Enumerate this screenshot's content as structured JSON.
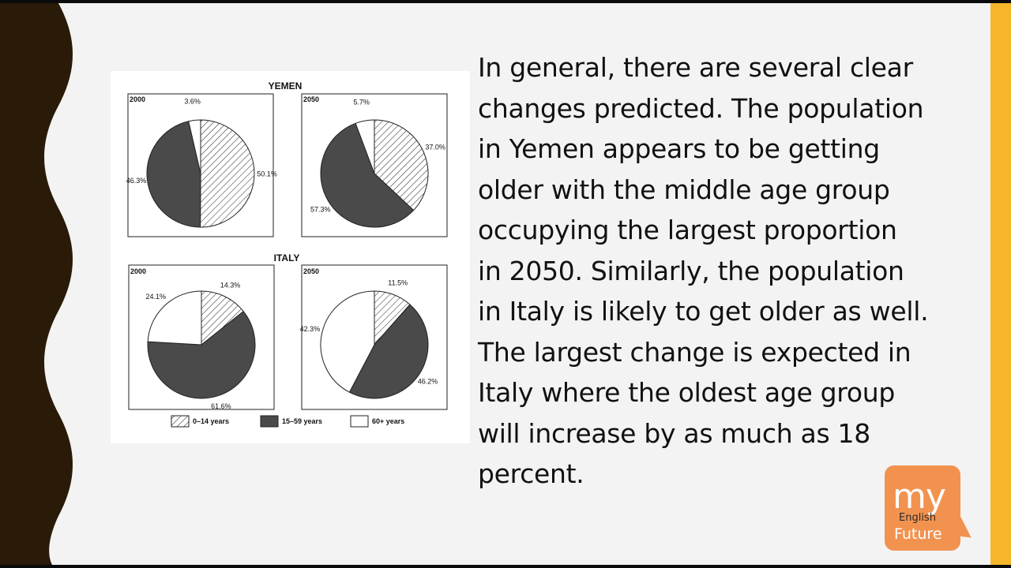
{
  "slide": {
    "body_text": "In general, there are several clear\nchanges predicted.  The population\nin Yemen appears to be getting\nolder with the middle age group\noccupying the largest proportion\nin 2050.  Similarly, the population\nin Italy is likely to get older as well.\nThe largest change is expected in\nItaly where the oldest age group\nwill increase by as much as 18\npercent."
  },
  "logo": {
    "my": "my",
    "english": "English",
    "future": "Future"
  },
  "colors": {
    "accent_bar": "#f6b52a",
    "frame": "#2a1a08",
    "logo": "#f2924f",
    "slice_dark": "#4a4a4a",
    "slice_light": "#ffffff"
  },
  "chart_data": [
    {
      "type": "pie",
      "country": "YEMEN",
      "panel": "2000",
      "categories": [
        "0–14 years",
        "15–59 years",
        "60+ years"
      ],
      "values": [
        50.1,
        46.3,
        3.6
      ],
      "labels": [
        "50.1%",
        "46.3%",
        "3.6%"
      ]
    },
    {
      "type": "pie",
      "country": "YEMEN",
      "panel": "2050",
      "categories": [
        "0–14 years",
        "15–59 years",
        "60+ years"
      ],
      "values": [
        37.0,
        57.3,
        5.7
      ],
      "labels": [
        "37.0%",
        "57.3%",
        "5.7%"
      ]
    },
    {
      "type": "pie",
      "country": "ITALY",
      "panel": "2000",
      "categories": [
        "0–14 years",
        "15–59 years",
        "60+ years"
      ],
      "values": [
        14.3,
        61.6,
        24.1
      ],
      "labels": [
        "14.3%",
        "61.6%",
        "24.1%"
      ]
    },
    {
      "type": "pie",
      "country": "ITALY",
      "panel": "2050",
      "categories": [
        "0–14 years",
        "15–59 years",
        "60+ years"
      ],
      "values": [
        11.5,
        46.2,
        42.3
      ],
      "labels": [
        "11.5%",
        "46.2%",
        "42.3%"
      ]
    }
  ],
  "legend": [
    {
      "name": "0–14 years",
      "style": "hatched"
    },
    {
      "name": "15–59 years",
      "style": "dark"
    },
    {
      "name": "60+ years",
      "style": "white"
    }
  ]
}
